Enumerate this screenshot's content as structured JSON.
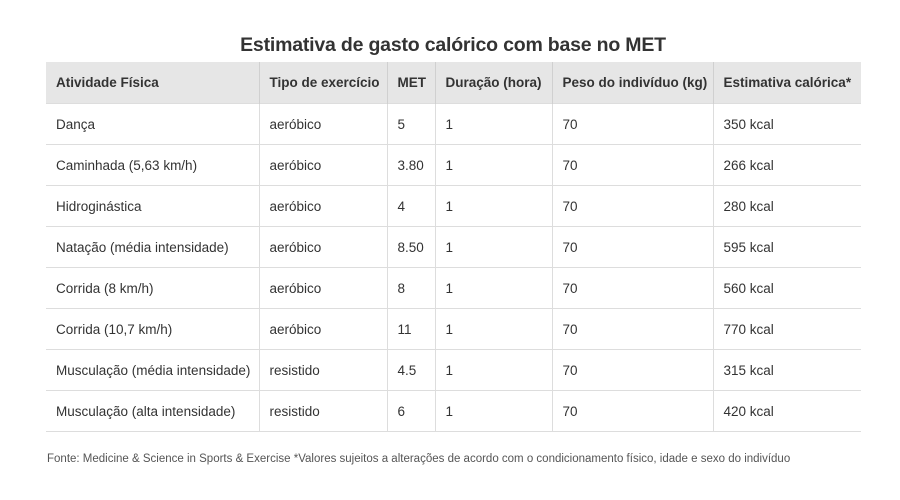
{
  "title": "Estimativa de gasto calórico com base no MET",
  "table": {
    "headers": [
      "Atividade Física",
      "Tipo de exercício",
      "MET",
      "Duração (hora)",
      "Peso do indivíduo (kg)",
      "Estimativa calórica*"
    ],
    "rows": [
      [
        "Dança",
        "aeróbico",
        "5",
        "1",
        "70",
        "350 kcal"
      ],
      [
        "Caminhada (5,63 km/h)",
        "aeróbico",
        "3.80",
        "1",
        "70",
        "266 kcal"
      ],
      [
        "Hidroginástica",
        "aeróbico",
        "4",
        "1",
        "70",
        "280 kcal"
      ],
      [
        "Natação (média intensidade)",
        "aeróbico",
        "8.50",
        "1",
        "70",
        "595 kcal"
      ],
      [
        "Corrida (8 km/h)",
        "aeróbico",
        "8",
        "1",
        "70",
        "560 kcal"
      ],
      [
        "Corrida (10,7 km/h)",
        "aeróbico",
        "11",
        "1",
        "70",
        "770 kcal"
      ],
      [
        "Musculação (média intensidade)",
        "resistido",
        "4.5",
        "1",
        "70",
        "315 kcal"
      ],
      [
        "Musculação (alta intensidade)",
        "resistido",
        "6",
        "1",
        "70",
        "420 kcal"
      ]
    ]
  },
  "footnote": "Fonte: Medicine & Science in Sports & Exercise *Valores sujeitos a alterações de acordo com o condicionamento físico, idade e sexo do indivíduo"
}
